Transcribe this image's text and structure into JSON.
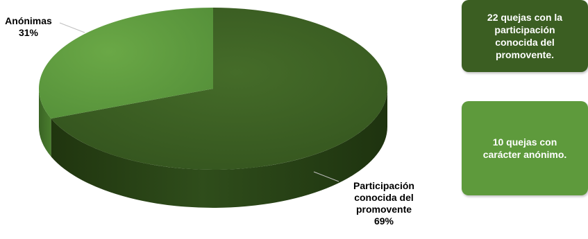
{
  "chart_data": {
    "type": "pie",
    "style": "3d",
    "slices": [
      {
        "label": "Anónimas",
        "value": 31,
        "pct_label": "31%",
        "color": "#5e9a3c",
        "side_color": "#3f6a28"
      },
      {
        "label": "Participación conocida del promovente",
        "value": 69,
        "pct_label": "69%",
        "color": "#3b5e22",
        "side_color": "#294419"
      }
    ],
    "labels": {
      "anon_name": "Anónimas",
      "anon_pct": "31%",
      "known_name_line1": "Participación",
      "known_name_line2": "conocida del",
      "known_name_line3": "promovente",
      "known_pct": "69%"
    }
  },
  "notes": [
    {
      "text_line1": "22 quejas con la",
      "text_line2": "participación",
      "text_line3": "conocida del",
      "text_line4": "promovente.",
      "color": "#3b5e22"
    },
    {
      "text_line1": "10 quejas con",
      "text_line2": "carácter anónimo.",
      "color": "#5e9a3c"
    }
  ]
}
